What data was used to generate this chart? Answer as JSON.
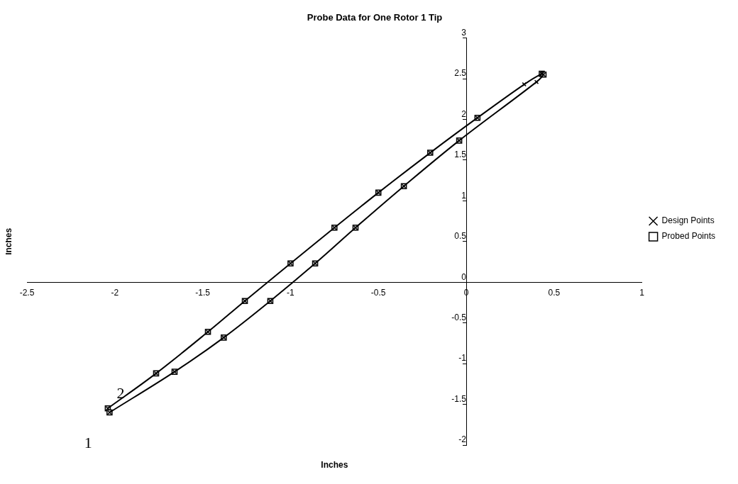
{
  "chart_data": {
    "type": "line",
    "title": "Probe Data for One Rotor 1 Tip",
    "xlabel": "Inches",
    "ylabel": "Inches",
    "xlim": [
      -2.5,
      1
    ],
    "xticks": [
      -2.5,
      -2,
      -1.5,
      -1,
      -0.5,
      0,
      0.5,
      1
    ],
    "ylim": [
      -2,
      3
    ],
    "yticks": [
      -2,
      -1.5,
      -1,
      -0.5,
      0,
      0.5,
      1,
      1.5,
      2,
      2.5,
      3
    ],
    "grid": false,
    "legend": "right",
    "series": [
      {
        "name": "Design Points",
        "type": "line",
        "marker": "cross",
        "color": "#000000",
        "x": [
          -2.04,
          -1.765,
          -1.47,
          -1.26,
          -1.0,
          -0.75,
          -0.5,
          -0.205,
          0.064,
          0.33,
          0.43,
          0.44,
          0.4,
          -0.04,
          -0.355,
          -0.63,
          -0.86,
          -1.115,
          -1.38,
          -1.66,
          -2.03
        ],
        "values": [
          -1.55,
          -1.12,
          -0.61,
          -0.23,
          0.23,
          0.67,
          1.1,
          1.59,
          2.02,
          2.43,
          2.56,
          2.55,
          2.46,
          1.74,
          1.18,
          0.67,
          0.23,
          -0.23,
          -0.68,
          -1.1,
          -1.6
        ]
      },
      {
        "name": "Probed Points",
        "type": "scatter",
        "marker": "square",
        "color": "#000000",
        "x": [
          -2.04,
          -1.765,
          -1.47,
          -1.26,
          -1.0,
          -0.75,
          -0.5,
          -0.205,
          0.064,
          0.43,
          0.44,
          -0.04,
          -0.355,
          -0.63,
          -0.86,
          -1.115,
          -1.38,
          -1.66,
          -2.03
        ],
        "values": [
          -1.55,
          -1.12,
          -0.61,
          -0.23,
          0.23,
          0.67,
          1.1,
          1.59,
          2.02,
          2.56,
          2.55,
          1.74,
          1.18,
          0.67,
          0.23,
          -0.23,
          -0.68,
          -1.1,
          -1.6
        ]
      }
    ],
    "annotations": [
      {
        "text": "1",
        "x": -2.03,
        "y": -1.6
      },
      {
        "text": "2",
        "x": -2.04,
        "y": -1.55
      }
    ]
  }
}
